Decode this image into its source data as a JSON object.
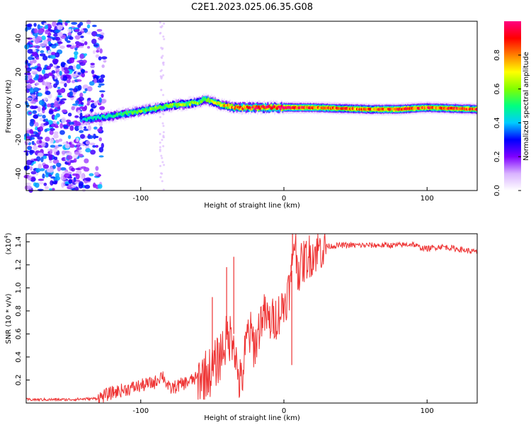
{
  "figure_title": "C2E1.2023.025.06.35.G08",
  "chart_data": [
    {
      "type": "heatmap",
      "title": "",
      "xlabel": "Height of straight line (km)",
      "ylabel": "Frequency (Hz)",
      "xlim": [
        -180,
        135
      ],
      "ylim": [
        -50,
        50
      ],
      "xticks": [
        -100,
        0,
        100
      ],
      "yticks": [
        -40,
        -20,
        0,
        20,
        40
      ],
      "colorbar": {
        "label": "Normalized spectral amplitude",
        "range": [
          0,
          1
        ],
        "ticks": [
          0.0,
          0.2,
          0.4,
          0.6,
          0.8
        ],
        "colors": [
          "#ffffff",
          "#d9b3ff",
          "#7f00ff",
          "#0000ff",
          "#00ccff",
          "#00ff80",
          "#80ff00",
          "#ffff00",
          "#ff8000",
          "#ff0000",
          "#ff0080"
        ]
      },
      "ridge": {
        "description_free": true,
        "height_km": [
          -140,
          -120,
          -100,
          -80,
          -60,
          -55,
          -45,
          -35,
          -20,
          0,
          20,
          60,
          80,
          100,
          135
        ],
        "frequency_hz": [
          -8,
          -6,
          -3,
          0,
          2,
          4,
          1,
          -1,
          -1,
          -1,
          -1,
          -2,
          -2,
          -1,
          -2
        ],
        "amplitude": [
          0.45,
          0.5,
          0.55,
          0.6,
          0.6,
          0.55,
          0.7,
          0.8,
          0.9,
          0.95,
          0.85,
          0.8,
          0.9,
          0.85,
          0.85
        ]
      },
      "noise_region_km": [
        -180,
        -125
      ]
    },
    {
      "type": "line",
      "title": "",
      "xlabel": "Height of straight line (km)",
      "ylabel": "SNR (10 * v/v)",
      "y_multiplier_label": "(x10",
      "y_multiplier_exp": "4",
      "xlim": [
        -180,
        135
      ],
      "ylim": [
        0,
        1.47
      ],
      "xticks": [
        -100,
        0,
        100
      ],
      "yticks": [
        0.2,
        0.4,
        0.6,
        0.8,
        1.0,
        1.2,
        1.4
      ],
      "series": [
        {
          "color": "#ee3333",
          "x": [
            -180,
            -150,
            -130,
            -120,
            -110,
            -100,
            -90,
            -85,
            -80,
            -70,
            -60,
            -50,
            -45,
            -42,
            -40,
            -35,
            -33,
            -30,
            -25,
            -20,
            -15,
            -10,
            -5,
            0,
            5,
            7,
            10,
            15,
            20,
            25,
            30,
            40,
            50,
            60,
            70,
            80,
            90,
            95,
            100,
            110,
            120,
            135
          ],
          "y": [
            0.03,
            0.03,
            0.04,
            0.09,
            0.12,
            0.15,
            0.18,
            0.25,
            0.12,
            0.17,
            0.22,
            0.28,
            0.4,
            0.5,
            0.55,
            0.6,
            0.3,
            0.15,
            0.62,
            0.5,
            0.78,
            0.7,
            0.75,
            0.85,
            1.05,
            1.45,
            1.15,
            1.25,
            1.3,
            1.34,
            1.36,
            1.37,
            1.37,
            1.37,
            1.37,
            1.37,
            1.38,
            1.35,
            1.34,
            1.36,
            1.34,
            1.31
          ]
        }
      ],
      "spikes": [
        {
          "x": -50,
          "y": 0.92
        },
        {
          "x": -40,
          "y": 1.18
        },
        {
          "x": -35,
          "y": 1.27
        },
        {
          "x": 5,
          "y": 1.2
        },
        {
          "x": 6,
          "y": 1.47
        },
        {
          "x": 5.5,
          "y": 0.33
        }
      ]
    }
  ]
}
